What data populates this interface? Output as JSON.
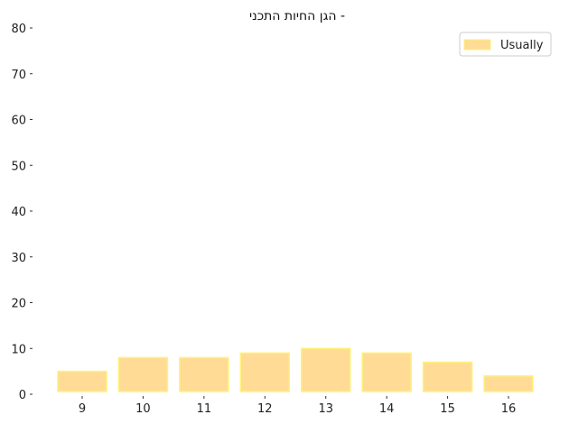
{
  "chart_data": {
    "type": "bar",
    "title": "הגן החיות התכני -",
    "xlabel": "",
    "ylabel": "",
    "categories": [
      "9",
      "10",
      "11",
      "12",
      "13",
      "14",
      "15",
      "16"
    ],
    "series": [
      {
        "name": "Usually",
        "values": [
          5,
          8,
          8,
          9,
          10,
          9,
          7,
          4
        ]
      }
    ],
    "ylim": [
      0,
      80
    ],
    "yticks": [
      0,
      10,
      20,
      30,
      40,
      50,
      60,
      70,
      80
    ],
    "grid": false,
    "legend_position": "top-right",
    "colors": {
      "bar_fill": "#FFDB96",
      "bar_edge": "#FFF27A"
    }
  }
}
